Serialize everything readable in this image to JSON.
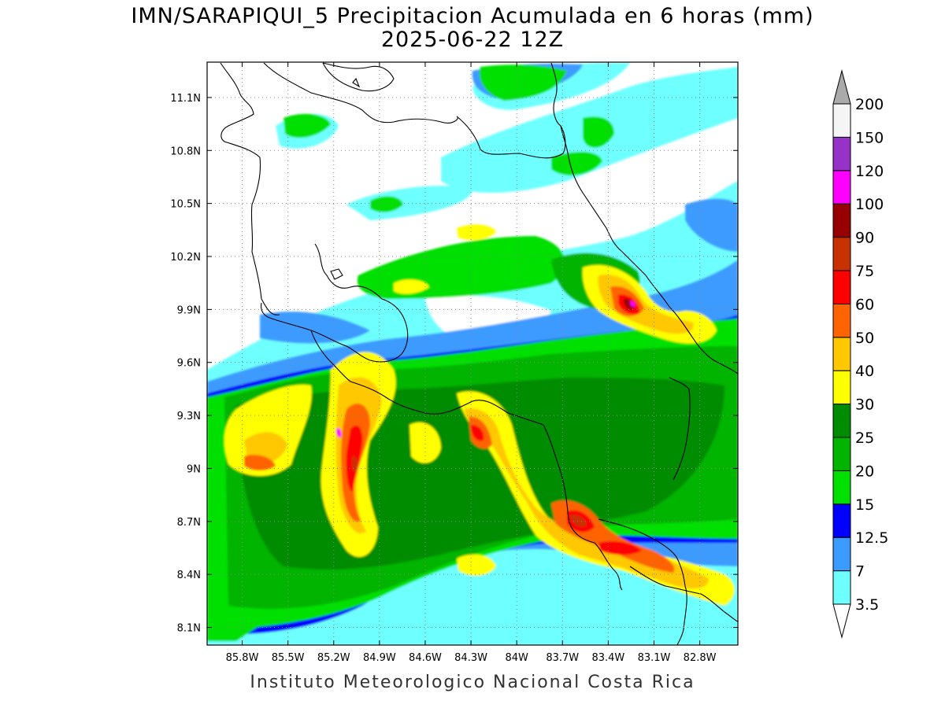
{
  "title_line1": "IMN/SARAPIQUI_5 Precipitacion Acumulada en 6 horas (mm)",
  "title_line2": "2025-06-22 12Z",
  "footer": "Instituto Meteorologico Nacional Costa Rica",
  "map": {
    "lon_range": [
      -86.03,
      -82.55
    ],
    "lat_range": [
      8.0,
      11.3
    ],
    "lon_ticks": [
      "85.8W",
      "85.5W",
      "85.2W",
      "84.9W",
      "84.6W",
      "84.3W",
      "84W",
      "83.7W",
      "83.4W",
      "83.1W",
      "82.8W"
    ],
    "lon_tick_values": [
      -85.8,
      -85.5,
      -85.2,
      -84.9,
      -84.6,
      -84.3,
      -84.0,
      -83.7,
      -83.4,
      -83.1,
      -82.8
    ],
    "lat_ticks": [
      "11.1N",
      "10.8N",
      "10.5N",
      "10.2N",
      "9.9N",
      "9.6N",
      "9.3N",
      "9N",
      "8.7N",
      "8.4N",
      "8.1N"
    ],
    "lat_tick_values": [
      11.1,
      10.8,
      10.5,
      10.2,
      9.9,
      9.6,
      9.3,
      9.0,
      8.7,
      8.4,
      8.1
    ],
    "grid": true
  },
  "colorbar": {
    "labels": [
      "3.5",
      "7",
      "12.5",
      "15",
      "20",
      "25",
      "30",
      "40",
      "50",
      "60",
      "75",
      "90",
      "100",
      "120",
      "150",
      "200"
    ],
    "colors": [
      "#6effff",
      "#3c9bff",
      "#0000ff",
      "#00e000",
      "#00b400",
      "#008c00",
      "#ffff00",
      "#ffc800",
      "#ff6400",
      "#ff0000",
      "#c83200",
      "#960000",
      "#ff00ff",
      "#9632c8",
      "#f5f5f5",
      "#aaaaaa"
    ],
    "below_color": "#ffffff",
    "above_color": "#aaaaaa"
  }
}
